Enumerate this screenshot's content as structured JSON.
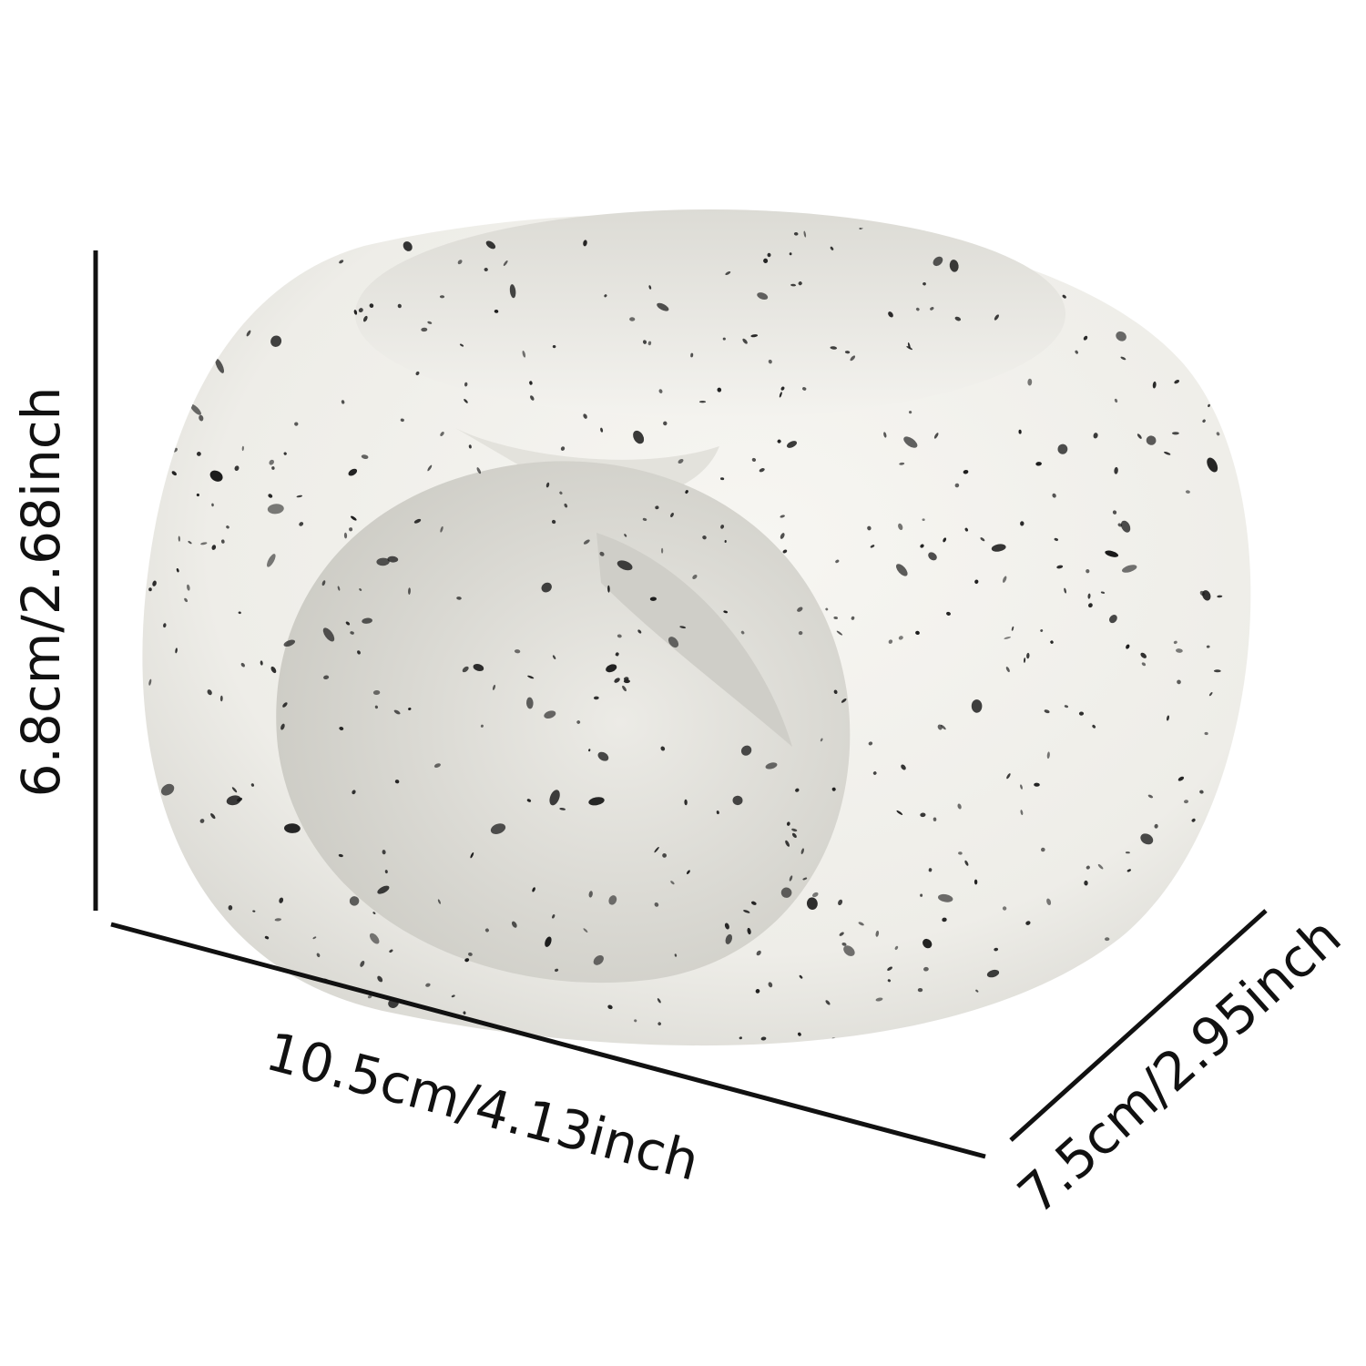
{
  "product": {
    "image": "speckled-white-ceramic-oil-burner",
    "colors": {
      "body": "#f1f0ec",
      "shadow": "#d9d8d2",
      "speckle": "#1a1a1a"
    }
  },
  "dimensions": {
    "height": "6.8cm/2.68inch",
    "width": "10.5cm/4.13inch",
    "depth": "7.5cm/2.95inch"
  }
}
